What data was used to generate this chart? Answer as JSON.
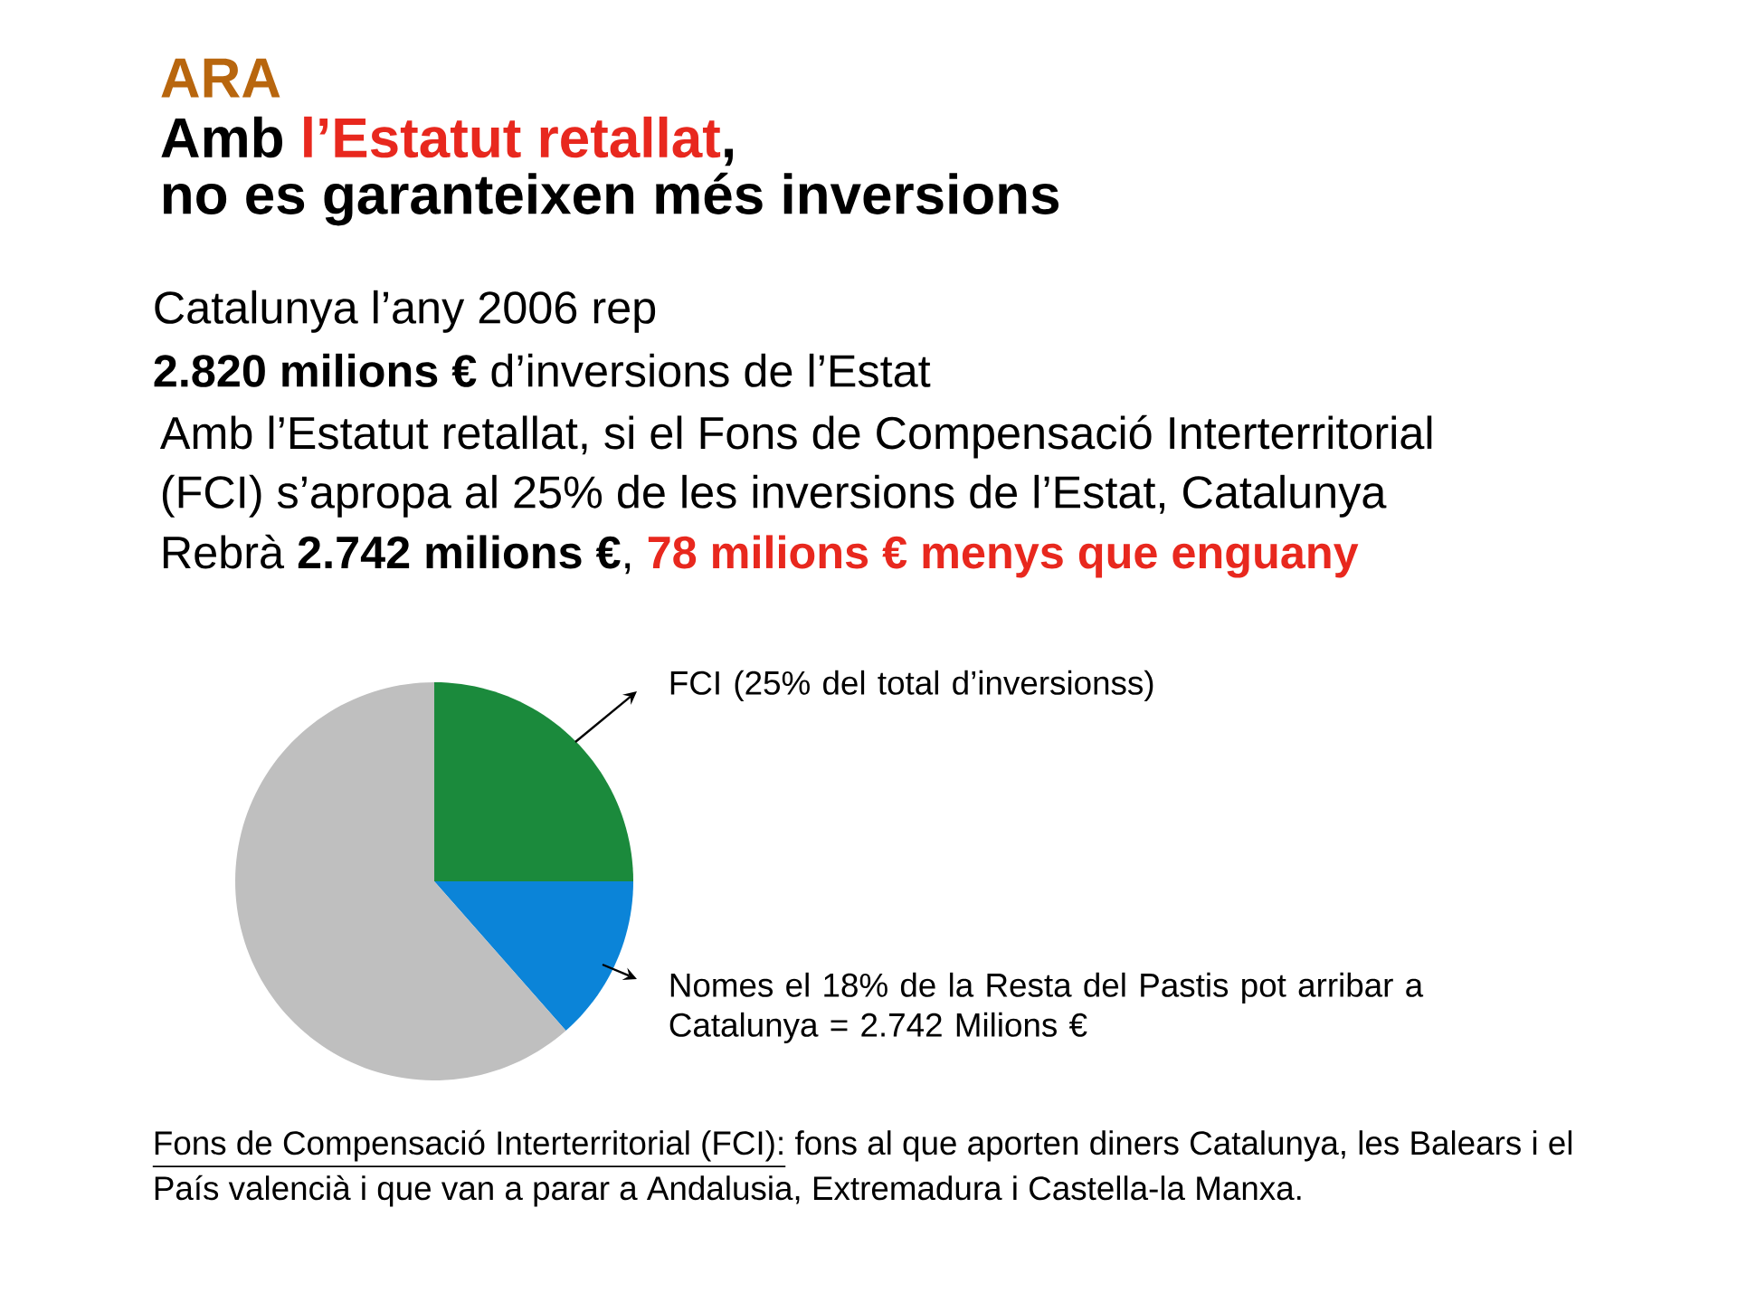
{
  "chart_data": {
    "type": "pie",
    "title": "ARA",
    "subtitle": "no es garanteixen més inversions",
    "categories": [
      "FCI (25% del total d’inversionss)",
      "Nomes el 18% de la Resta del Pastis pot arribar a Catalunya = 2.742 Milions €",
      null
    ],
    "values": [
      25,
      13.5,
      61.5
    ],
    "colors": [
      "#1b8a3c",
      "#0b84d8",
      "#bfbfbf"
    ],
    "legend": false,
    "annotations": [
      "Amb",
      "l’Estatut retallat",
      ",",
      "Catalunya l’any 2006 rep",
      "**2.820 milions €** d’inversions de l’Estat",
      "Amb l’Estatut retallat, si el Fons de Compensació Interterritorial",
      "(FCI) s’apropa al 25% de les inversions de l’Estat, Catalunya",
      "Rebrà **2.742 milions  €**,",
      "78 milions € menys que enguany",
      "Fons de Compensació Interterritorial (FCI):",
      "fons al que aporten diners Catalunya, les Balears i el",
      "País valencià i que van a parar a  Andalusia, Extremadura i Castella-la Manxa."
    ]
  }
}
